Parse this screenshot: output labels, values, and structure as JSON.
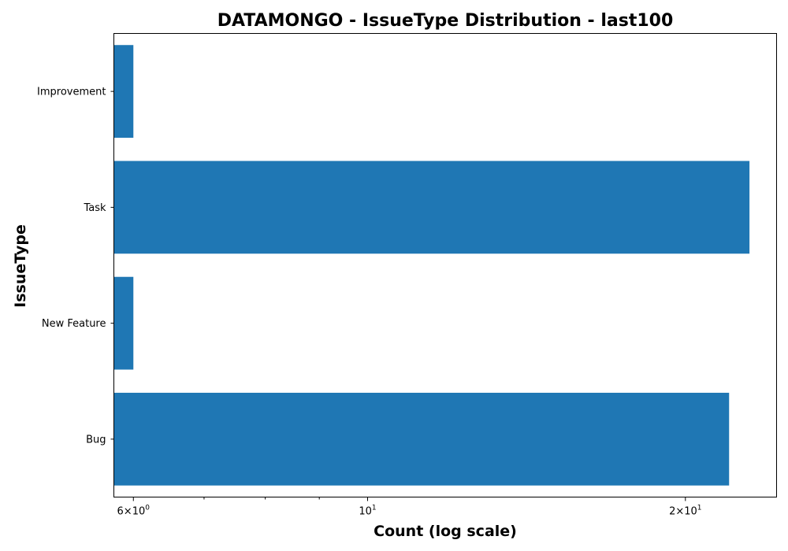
{
  "chart_data": {
    "type": "bar",
    "orientation": "horizontal",
    "title": "DATAMONGO - IssueType Distribution - last100",
    "xlabel": "Count (log scale)",
    "ylabel": "IssueType",
    "xscale": "log",
    "xlim": [
      5.75,
      24.4
    ],
    "categories": [
      "Bug",
      "New Feature",
      "Task",
      "Improvement"
    ],
    "values": [
      22,
      6,
      23,
      6
    ],
    "bar_color": "#1f77b4",
    "grid": false,
    "legend": "none",
    "x_major_ticks": [
      {
        "value": 6,
        "base": "6×10",
        "exp": "0"
      },
      {
        "value": 10,
        "base": "10",
        "exp": "1"
      },
      {
        "value": 20,
        "base": "2×10",
        "exp": "1"
      }
    ],
    "x_minor_ticks": [
      7,
      8,
      9
    ]
  }
}
